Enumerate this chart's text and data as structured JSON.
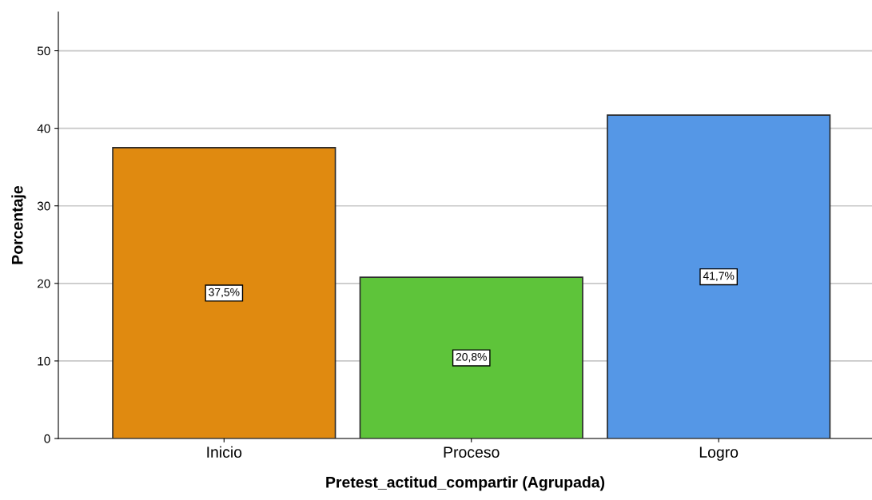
{
  "chart_data": {
    "type": "bar",
    "xlabel": "Pretest_actitud_compartir (Agrupada)",
    "ylabel": "Porcentaje",
    "categories": [
      "Inicio",
      "Proceso",
      "Logro"
    ],
    "values": [
      37.5,
      20.8,
      41.7
    ],
    "colors": [
      "#e08a10",
      "#5ec43a",
      "#5597e6"
    ],
    "value_labels": [
      "37,5%",
      "20,8%",
      "41,7%"
    ],
    "ylim": [
      0,
      55
    ],
    "yticks": [
      0,
      10,
      20,
      30,
      40,
      50
    ],
    "grid": "y"
  }
}
